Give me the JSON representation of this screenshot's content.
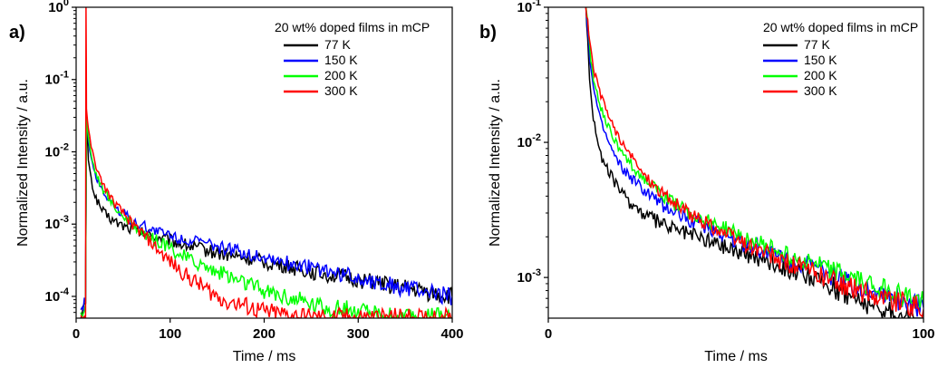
{
  "chart_data": [
    {
      "panel_label": "a)",
      "type": "line",
      "xlabel": "Time / ms",
      "ylabel": "Normalized Intensity / a.u.",
      "xlim": [
        0,
        400
      ],
      "ylim": [
        5e-05,
        1
      ],
      "yscale": "log",
      "xticks": [
        {
          "value": 0,
          "label": "0"
        },
        {
          "value": 100,
          "label": "100"
        },
        {
          "value": 200,
          "label": "200"
        },
        {
          "value": 300,
          "label": "300"
        },
        {
          "value": 400,
          "label": "400"
        }
      ],
      "yticks": [
        {
          "value": 0.0001,
          "base": "10",
          "exp": "-4"
        },
        {
          "value": 0.001,
          "base": "10",
          "exp": "-3"
        },
        {
          "value": 0.01,
          "base": "10",
          "exp": "-2"
        },
        {
          "value": 0.1,
          "base": "10",
          "exp": "-1"
        },
        {
          "value": 1,
          "base": "10",
          "exp": "0"
        }
      ],
      "legend_title": "20 wt% doped films in mCP",
      "legend_position": "top-right",
      "series": [
        {
          "name": "77   K",
          "color": "#000000",
          "x": [
            5,
            10,
            11,
            13,
            16,
            20,
            25,
            30,
            40,
            50,
            60,
            70,
            80,
            100,
            120,
            150,
            200,
            250,
            300,
            350,
            400
          ],
          "y": [
            5e-05,
            8e-05,
            0.03,
            0.008,
            0.004,
            0.0025,
            0.0018,
            0.0014,
            0.0011,
            0.00095,
            0.00085,
            0.00075,
            0.0007,
            0.0006,
            0.0005,
            0.0004,
            0.0003,
            0.00022,
            0.00017,
            0.00013,
            0.0001
          ]
        },
        {
          "name": "150 K",
          "color": "#0000ff",
          "x": [
            5,
            10,
            11,
            13,
            16,
            20,
            25,
            30,
            40,
            50,
            60,
            70,
            80,
            100,
            120,
            150,
            200,
            250,
            300,
            350,
            400
          ],
          "y": [
            5e-05,
            8e-05,
            0.03,
            0.015,
            0.008,
            0.005,
            0.0035,
            0.0027,
            0.0018,
            0.0014,
            0.0011,
            0.00095,
            0.00085,
            0.0007,
            0.0006,
            0.00048,
            0.00035,
            0.00025,
            0.00018,
            0.00013,
            0.0001
          ]
        },
        {
          "name": "200 K",
          "color": "#00ff00",
          "x": [
            5,
            10,
            11,
            13,
            16,
            20,
            25,
            30,
            40,
            50,
            60,
            70,
            80,
            100,
            120,
            150,
            200,
            250,
            300,
            350,
            400
          ],
          "y": [
            5e-05,
            8e-05,
            0.03,
            0.016,
            0.009,
            0.0055,
            0.0038,
            0.0028,
            0.0018,
            0.0013,
            0.001,
            0.0008,
            0.00065,
            0.00045,
            0.00033,
            0.00022,
            0.00012,
            8e-05,
            6e-05,
            5e-05,
            5e-05
          ]
        },
        {
          "name": "300 K",
          "color": "#ff0000",
          "x": [
            5,
            10,
            10.5,
            11,
            13,
            16,
            20,
            25,
            30,
            40,
            50,
            60,
            70,
            80,
            90,
            100,
            120,
            150,
            200,
            250,
            300,
            350,
            400
          ],
          "y": [
            5e-05,
            5e-05,
            1,
            0.04,
            0.02,
            0.012,
            0.007,
            0.0045,
            0.0033,
            0.002,
            0.0014,
            0.001,
            0.00075,
            0.00055,
            0.0004,
            0.0003,
            0.00018,
            0.0001,
            6e-05,
            5e-05,
            5e-05,
            5e-05,
            5e-05
          ]
        }
      ],
      "grid": false
    },
    {
      "panel_label": "b)",
      "type": "line",
      "xlabel": "Time / ms",
      "ylabel": "Normalized Intensity / a.u.",
      "xlim": [
        0,
        100
      ],
      "ylim": [
        0.0005,
        0.1
      ],
      "yscale": "log",
      "xticks": [
        {
          "value": 0,
          "label": "0"
        },
        {
          "value": 100,
          "label": "100"
        }
      ],
      "yticks": [
        {
          "value": 0.001,
          "base": "10",
          "exp": "-3"
        },
        {
          "value": 0.01,
          "base": "10",
          "exp": "-2"
        },
        {
          "value": 0.1,
          "base": "10",
          "exp": "-1"
        }
      ],
      "legend_title": "20 wt% doped films in mCP",
      "legend_position": "top-right",
      "series": [
        {
          "name": "77   K",
          "color": "#000000",
          "x": [
            10,
            10.5,
            11,
            12,
            14,
            16,
            18,
            20,
            25,
            30,
            35,
            40,
            50,
            60,
            70,
            80,
            90,
            100
          ],
          "y": [
            0.1,
            0.06,
            0.03,
            0.015,
            0.008,
            0.006,
            0.005,
            0.004,
            0.003,
            0.0025,
            0.0022,
            0.002,
            0.0016,
            0.0013,
            0.001,
            0.00075,
            0.00055,
            0.00045
          ]
        },
        {
          "name": "150 K",
          "color": "#0000ff",
          "x": [
            10,
            10.5,
            11,
            12,
            14,
            16,
            18,
            20,
            25,
            30,
            35,
            40,
            50,
            60,
            70,
            80,
            90,
            100
          ],
          "y": [
            0.1,
            0.07,
            0.045,
            0.025,
            0.014,
            0.01,
            0.0075,
            0.0062,
            0.0045,
            0.0035,
            0.0029,
            0.0025,
            0.0019,
            0.0015,
            0.0012,
            0.0009,
            0.00075,
            0.0006
          ]
        },
        {
          "name": "200 K",
          "color": "#00ff00",
          "x": [
            10,
            10.5,
            11,
            12,
            14,
            16,
            18,
            20,
            25,
            30,
            35,
            40,
            50,
            60,
            70,
            80,
            90,
            100
          ],
          "y": [
            0.1,
            0.075,
            0.05,
            0.03,
            0.018,
            0.013,
            0.01,
            0.008,
            0.0055,
            0.0041,
            0.0033,
            0.0028,
            0.0021,
            0.0016,
            0.0013,
            0.001,
            0.0008,
            0.00065
          ]
        },
        {
          "name": "300 K",
          "color": "#ff0000",
          "x": [
            10,
            10.5,
            11,
            12,
            14,
            16,
            18,
            20,
            25,
            30,
            35,
            40,
            50,
            60,
            70,
            80,
            90,
            100
          ],
          "y": [
            0.1,
            0.08,
            0.055,
            0.035,
            0.022,
            0.016,
            0.012,
            0.0095,
            0.006,
            0.0043,
            0.0033,
            0.0027,
            0.0019,
            0.0014,
            0.0011,
            0.00085,
            0.0007,
            0.00058
          ]
        }
      ],
      "grid": false
    }
  ]
}
